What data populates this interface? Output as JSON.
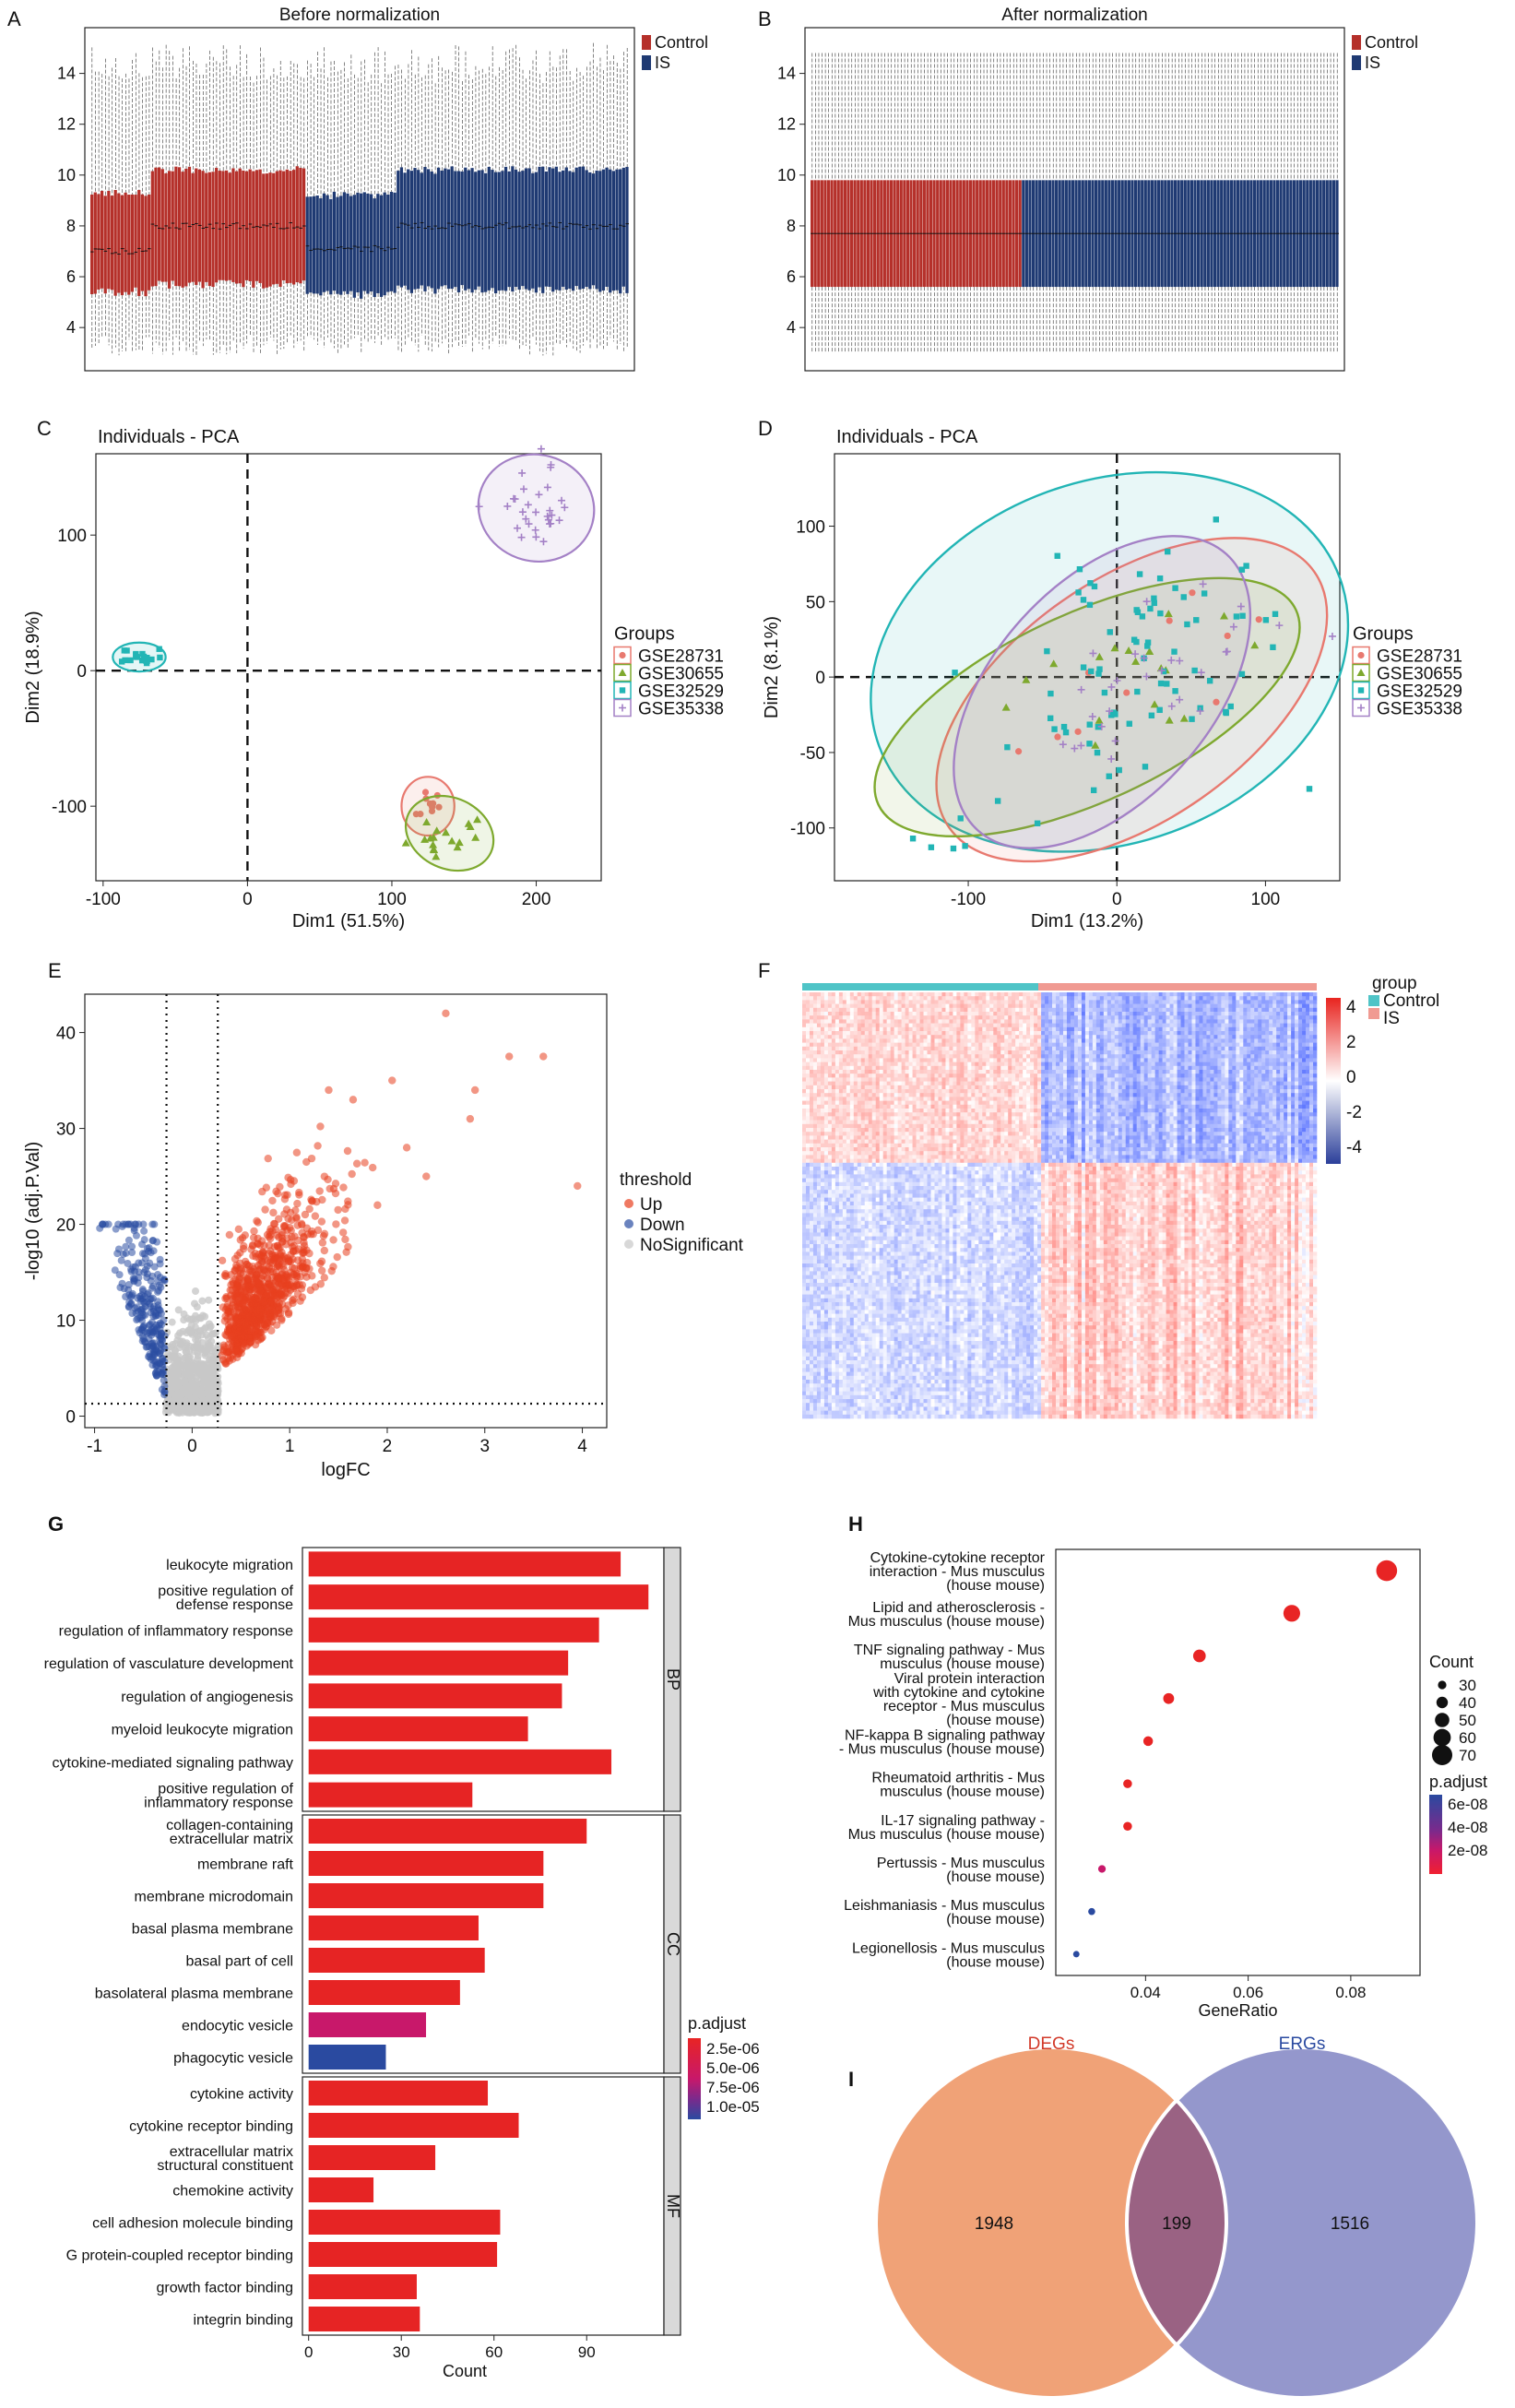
{
  "colors": {
    "control_red": "#b5302a",
    "is_blue": "#1f3a73",
    "gse28731": "#e8796f",
    "gse30655": "#7ea92e",
    "gse32529": "#22b5b5",
    "gse35338": "#a481c6",
    "up": "#e8401f",
    "down": "#2b4fa2",
    "nosig": "#c8c8c8",
    "bar_red": "#e62424",
    "grey_strip": "#d9d9d9",
    "degs": "#f0a277",
    "ergs": "#9497cc",
    "overlap": "#9a6283",
    "heat_control": "#4fc4c7",
    "heat_is": "#f09a92"
  },
  "panel_labels": [
    "A",
    "B",
    "C",
    "D",
    "E",
    "F",
    "G",
    "H",
    "I"
  ],
  "panelA": {
    "title": "Before normalization",
    "yticks": [
      "4",
      "6",
      "8",
      "10",
      "12",
      "14"
    ],
    "yrange": [
      2.3,
      15.8
    ],
    "legend": [
      "Control",
      "IS"
    ]
  },
  "panelB": {
    "title": "After normalization",
    "yticks": [
      "4",
      "6",
      "8",
      "10",
      "12",
      "14"
    ],
    "yrange": [
      2.3,
      15.8
    ],
    "legend": [
      "Control",
      "IS"
    ]
  },
  "panelC": {
    "title": "Individuals - PCA",
    "xlabel": "Dim1 (51.5%)",
    "ylabel": "Dim2 (18.9%)",
    "xticks": [
      "-100",
      "0",
      "100",
      "200"
    ],
    "yticks": [
      "-100",
      "0",
      "100"
    ],
    "xrange": [
      -105,
      245
    ],
    "yrange": [
      -155,
      160
    ],
    "legend_title": "Groups",
    "groups": [
      "GSE28731",
      "GSE30655",
      "GSE32529",
      "GSE35338"
    ],
    "centers": [
      [
        125,
        -100
      ],
      [
        140,
        -120
      ],
      [
        -75,
        10
      ],
      [
        200,
        120
      ]
    ]
  },
  "panelD": {
    "title": "Individuals - PCA",
    "xlabel": "Dim1 (13.2%)",
    "ylabel": "Dim2 (8.1%)",
    "xticks": [
      "-100",
      "0",
      "100"
    ],
    "yticks": [
      "-100",
      "-50",
      "0",
      "50",
      "100"
    ],
    "xrange": [
      -190,
      150
    ],
    "yrange": [
      -135,
      148
    ],
    "legend_title": "Groups",
    "groups": [
      "GSE28731",
      "GSE30655",
      "GSE32529",
      "GSE35338"
    ]
  },
  "panelE": {
    "xlabel": "logFC",
    "ylabel": "-log10 (adj.P.Val)",
    "xticks": [
      "-1",
      "0",
      "1",
      "2",
      "3",
      "4"
    ],
    "yticks": [
      "0",
      "10",
      "20",
      "30",
      "40"
    ],
    "xrange": [
      -1.1,
      4.25
    ],
    "yrange": [
      -1.2,
      44
    ],
    "legend_title": "threshold",
    "legend": [
      "Up",
      "Down",
      "NoSignificant"
    ],
    "vlines": [
      -0.263,
      0.263
    ],
    "hline": 1.3
  },
  "panelF": {
    "legend_title": "group",
    "groups": [
      "Control",
      "IS"
    ],
    "scale_ticks": [
      "4",
      "2",
      "0",
      "-2",
      "-4"
    ]
  },
  "panelG": {
    "chart_data": {
      "type": "bar",
      "xlabel": "Count",
      "xticks": [
        "0",
        "30",
        "60",
        "90"
      ],
      "xrange": [
        -2,
        115
      ],
      "facets": [
        {
          "name": "BP",
          "terms": [
            {
              "label": [
                "leukocyte migration"
              ],
              "count": 101,
              "p": 1.2e-09
            },
            {
              "label": [
                "positive regulation of",
                "defense response"
              ],
              "count": 110,
              "p": 1.2e-09
            },
            {
              "label": [
                "regulation of inflammatory response"
              ],
              "count": 94,
              "p": 1.2e-09
            },
            {
              "label": [
                "regulation of vasculature development"
              ],
              "count": 84,
              "p": 1.2e-09
            },
            {
              "label": [
                "regulation of angiogenesis"
              ],
              "count": 82,
              "p": 1.2e-09
            },
            {
              "label": [
                "myeloid leukocyte migration"
              ],
              "count": 71,
              "p": 1.2e-09
            },
            {
              "label": [
                "cytokine-mediated signaling pathway"
              ],
              "count": 98,
              "p": 1.2e-09
            },
            {
              "label": [
                "positive regulation of",
                "inflammatory response"
              ],
              "count": 53,
              "p": 1.2e-09
            }
          ]
        },
        {
          "name": "CC",
          "terms": [
            {
              "label": [
                "collagen-containing",
                "extracellular matrix"
              ],
              "count": 90,
              "p": 1.2e-09
            },
            {
              "label": [
                "membrane raft"
              ],
              "count": 76,
              "p": 1.2e-09
            },
            {
              "label": [
                "membrane microdomain"
              ],
              "count": 76,
              "p": 1.2e-09
            },
            {
              "label": [
                "basal plasma membrane"
              ],
              "count": 55,
              "p": 1.2e-09
            },
            {
              "label": [
                "basal part of cell"
              ],
              "count": 57,
              "p": 1.2e-09
            },
            {
              "label": [
                "basolateral plasma membrane"
              ],
              "count": 49,
              "p": 1.2e-09
            },
            {
              "label": [
                "endocytic vesicle"
              ],
              "count": 38,
              "p": 5e-06
            },
            {
              "label": [
                "phagocytic vesicle"
              ],
              "count": 25,
              "p": 1e-05
            }
          ]
        },
        {
          "name": "MF",
          "terms": [
            {
              "label": [
                "cytokine activity"
              ],
              "count": 58,
              "p": 1.2e-09
            },
            {
              "label": [
                "cytokine receptor binding"
              ],
              "count": 68,
              "p": 1.2e-09
            },
            {
              "label": [
                "extracellular matrix",
                "structural constituent"
              ],
              "count": 41,
              "p": 1.2e-09
            },
            {
              "label": [
                "chemokine activity"
              ],
              "count": 21,
              "p": 1.2e-09
            },
            {
              "label": [
                "cell adhesion molecule binding"
              ],
              "count": 62,
              "p": 1.2e-09
            },
            {
              "label": [
                "G protein-coupled receptor binding"
              ],
              "count": 61,
              "p": 1.2e-09
            },
            {
              "label": [
                "growth factor binding"
              ],
              "count": 35,
              "p": 1.2e-09
            },
            {
              "label": [
                "integrin binding"
              ],
              "count": 36,
              "p": 1.2e-09
            }
          ]
        }
      ],
      "legend_title": "p.adjust",
      "legend_ticks": [
        "2.5e-06",
        "5.0e-06",
        "7.5e-06",
        "1.0e-05"
      ]
    }
  },
  "panelH": {
    "chart_data": {
      "type": "scatter",
      "xlabel": "GeneRatio",
      "xticks": [
        "0.04",
        "0.06",
        "0.08"
      ],
      "xrange": [
        0.0225,
        0.0935
      ],
      "terms": [
        {
          "label": [
            "Cytokine-cytokine receptor",
            "interaction - Mus musculus",
            "(house mouse)"
          ],
          "ratio": 0.087,
          "count": 72,
          "p": 1e-10
        },
        {
          "label": [
            "Lipid and atherosclerosis -",
            "Mus musculus (house mouse)"
          ],
          "ratio": 0.0685,
          "count": 58,
          "p": 1e-10
        },
        {
          "label": [
            "TNF signaling pathway - Mus",
            "musculus (house mouse)"
          ],
          "ratio": 0.0505,
          "count": 44,
          "p": 1e-10
        },
        {
          "label": [
            "Viral protein interaction",
            "with cytokine and cytokine",
            "receptor - Mus musculus",
            "(house mouse)"
          ],
          "ratio": 0.0445,
          "count": 38,
          "p": 1e-10
        },
        {
          "label": [
            "NF-kappa B signaling pathway",
            "- Mus musculus (house mouse)"
          ],
          "ratio": 0.0405,
          "count": 34,
          "p": 1e-10
        },
        {
          "label": [
            "Rheumatoid arthritis - Mus",
            "musculus (house mouse)"
          ],
          "ratio": 0.0365,
          "count": 31,
          "p": 1e-10
        },
        {
          "label": [
            "IL-17 signaling pathway -",
            "Mus musculus (house mouse)"
          ],
          "ratio": 0.0365,
          "count": 31,
          "p": 1e-10
        },
        {
          "label": [
            "Pertussis - Mus musculus",
            "(house mouse)"
          ],
          "ratio": 0.0315,
          "count": 27,
          "p": 3e-08
        },
        {
          "label": [
            "Leishmaniasis - Mus musculus",
            "(house mouse)"
          ],
          "ratio": 0.0295,
          "count": 25,
          "p": 6e-08
        },
        {
          "label": [
            "Legionellosis - Mus musculus",
            "(house mouse)"
          ],
          "ratio": 0.0265,
          "count": 23,
          "p": 6.5e-08
        }
      ],
      "size_legend_title": "Count",
      "size_legend": [
        "30",
        "40",
        "50",
        "60",
        "70"
      ],
      "color_legend_title": "p.adjust",
      "color_legend_ticks": [
        "6e-08",
        "4e-08",
        "2e-08"
      ]
    }
  },
  "panelI": {
    "chart_data": {
      "type": "venn",
      "sets": [
        {
          "name": "DEGs",
          "only": 1948
        },
        {
          "name": "ERGs",
          "only": 1516
        }
      ],
      "overlap": 199,
      "labels": [
        "1948",
        "199",
        "1516"
      ]
    }
  }
}
